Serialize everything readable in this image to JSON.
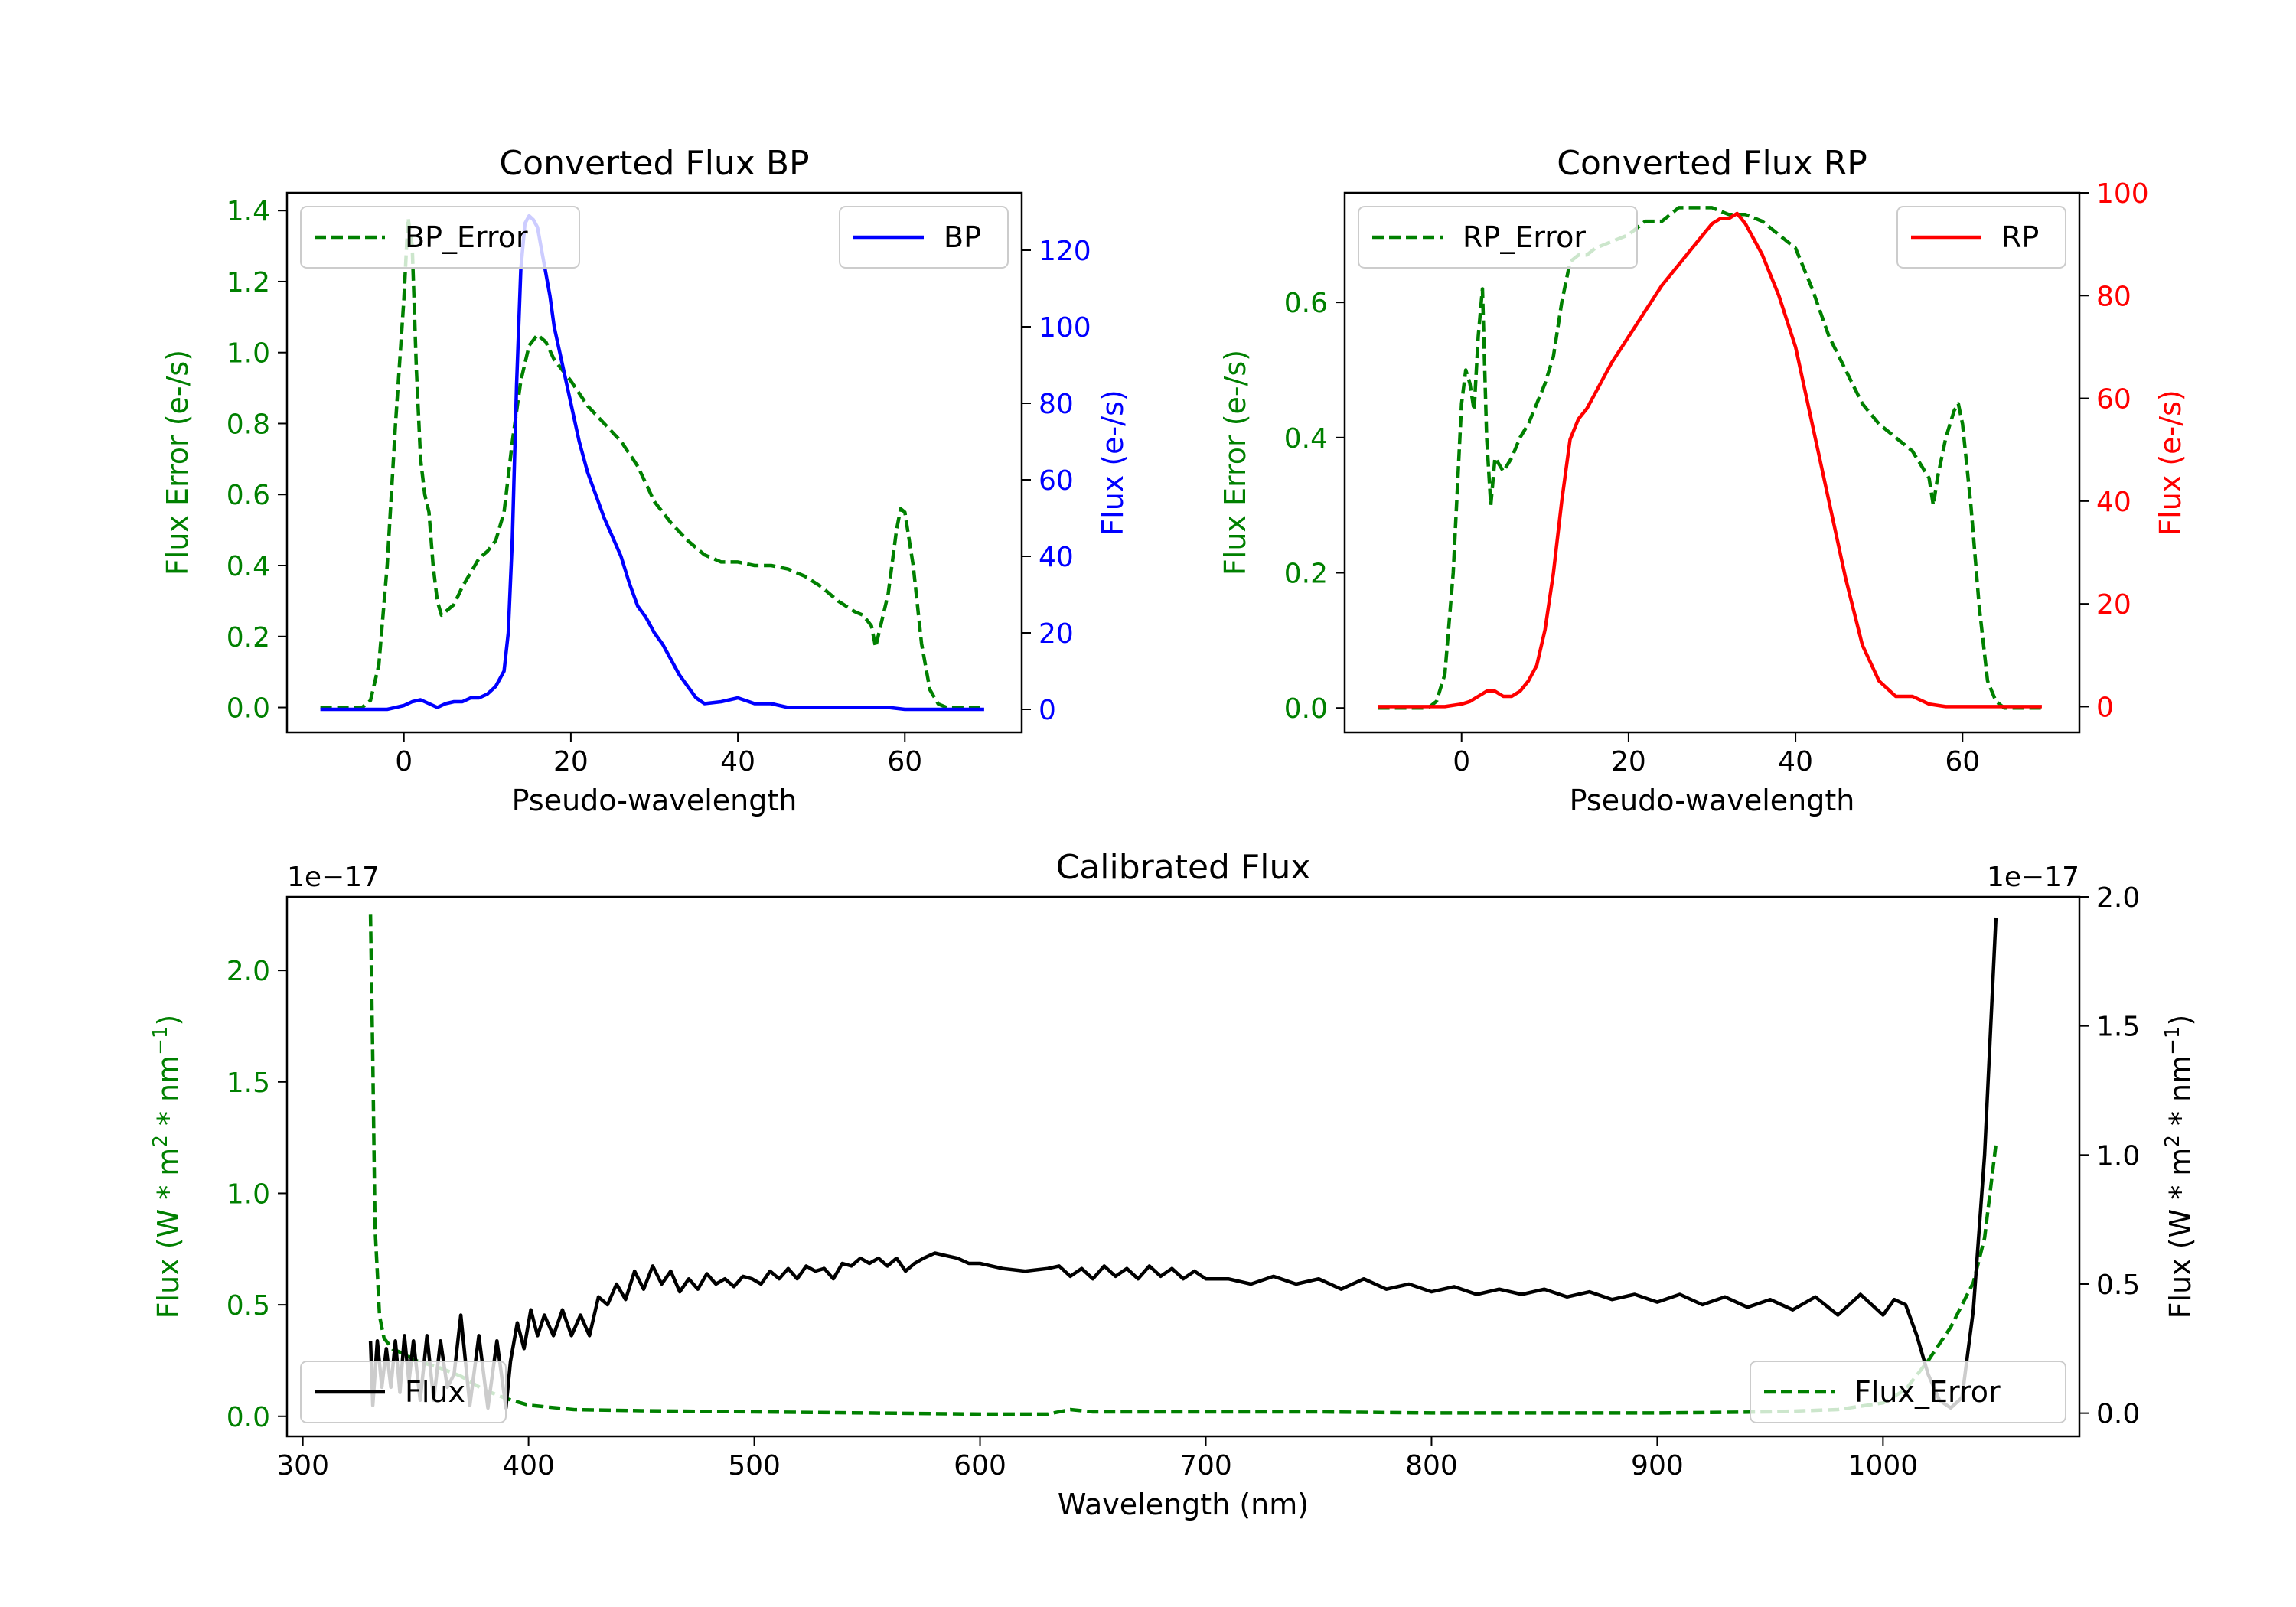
{
  "chart_data": [
    {
      "id": "bp",
      "type": "line",
      "title": "Converted Flux BP",
      "xlabel": "Pseudo-wavelength",
      "xlim": [
        -14,
        74
      ],
      "xticks": [
        0,
        20,
        40,
        60
      ],
      "ylabel_left": "Flux Error (e-/s)",
      "ylabel_right": "Flux (e-/s)",
      "ylim_left": [
        -0.07,
        1.45
      ],
      "yticks_left": [
        0.0,
        0.2,
        0.4,
        0.6,
        0.8,
        1.0,
        1.2,
        1.4
      ],
      "ylim_right": [
        -6,
        135
      ],
      "yticks_right": [
        0,
        20,
        40,
        60,
        80,
        100,
        120
      ],
      "left_color": "#008000",
      "right_color": "#0000ff",
      "series": [
        {
          "name": "BP_Error",
          "axis": "left",
          "style": "dashed",
          "color": "#008000",
          "x": [
            -10,
            -5,
            -4,
            -3,
            -2,
            -1,
            0,
            0.5,
            1,
            1.5,
            2,
            2.5,
            3,
            3.5,
            4,
            4.5,
            5,
            6,
            7,
            8,
            9,
            10,
            11,
            12,
            13,
            14,
            15,
            16,
            17,
            18,
            19,
            20,
            22,
            24,
            26,
            28,
            30,
            32,
            34,
            36,
            38,
            40,
            42,
            44,
            46,
            48,
            50,
            52,
            54,
            55,
            56,
            56.5,
            57,
            58,
            59,
            59.5,
            60,
            61,
            62,
            63,
            64,
            65,
            66,
            68,
            69.5
          ],
          "y": [
            0,
            0,
            0.02,
            0.12,
            0.4,
            0.8,
            1.15,
            1.38,
            1.3,
            0.95,
            0.7,
            0.6,
            0.55,
            0.4,
            0.3,
            0.26,
            0.27,
            0.29,
            0.34,
            0.38,
            0.42,
            0.44,
            0.47,
            0.55,
            0.75,
            0.92,
            1.02,
            1.05,
            1.03,
            0.98,
            0.95,
            0.92,
            0.85,
            0.8,
            0.75,
            0.68,
            0.58,
            0.52,
            0.47,
            0.43,
            0.41,
            0.41,
            0.4,
            0.4,
            0.39,
            0.37,
            0.34,
            0.3,
            0.27,
            0.26,
            0.23,
            0.17,
            0.22,
            0.32,
            0.5,
            0.56,
            0.55,
            0.4,
            0.18,
            0.05,
            0.01,
            0,
            0,
            0,
            0
          ]
        },
        {
          "name": "BP",
          "axis": "right",
          "style": "solid",
          "color": "#0000ff",
          "x": [
            -10,
            -4,
            -2,
            0,
            1,
            2,
            3,
            4,
            5,
            6,
            7,
            8,
            9,
            10,
            11,
            12,
            12.5,
            13,
            13.5,
            14,
            14.5,
            15,
            15.5,
            16,
            16.5,
            17,
            17.5,
            18,
            19,
            20,
            21,
            22,
            23,
            24,
            25,
            26,
            27,
            28,
            29,
            30,
            31,
            32,
            33,
            34,
            35,
            36,
            38,
            40,
            42,
            44,
            46,
            48,
            50,
            52,
            54,
            56,
            58,
            60,
            62,
            64,
            66,
            68,
            69.5
          ],
          "y": [
            0,
            0,
            0,
            1,
            2,
            2.5,
            1.5,
            0.5,
            1.5,
            2,
            2,
            3,
            3,
            4,
            6,
            10,
            20,
            45,
            85,
            115,
            127,
            129,
            128,
            126,
            120,
            114,
            108,
            100,
            90,
            80,
            70,
            62,
            56,
            50,
            45,
            40,
            33,
            27,
            24,
            20,
            17,
            13,
            9,
            6,
            3,
            1.5,
            2,
            3,
            1.5,
            1.5,
            0.5,
            0.5,
            0.5,
            0.5,
            0.5,
            0.5,
            0.5,
            0,
            0,
            0,
            0,
            0,
            0
          ]
        }
      ],
      "legends": [
        {
          "series": "BP_Error",
          "label": "BP_Error",
          "loc": "upper left"
        },
        {
          "series": "BP",
          "label": "BP",
          "loc": "upper right"
        }
      ]
    },
    {
      "id": "rp",
      "type": "line",
      "title": "Converted Flux RP",
      "xlabel": "Pseudo-wavelength",
      "xlim": [
        -14,
        74
      ],
      "xticks": [
        0,
        20,
        40,
        60
      ],
      "ylabel_left": "Flux Error (e-/s)",
      "ylabel_right": "Flux (e-/s)",
      "ylim_left": [
        -0.036,
        0.762
      ],
      "yticks_left": [
        0.0,
        0.2,
        0.4,
        0.6
      ],
      "ylim_right": [
        -5,
        100
      ],
      "yticks_right": [
        0,
        20,
        40,
        60,
        80,
        100
      ],
      "left_color": "#008000",
      "right_color": "#ff0000",
      "series": [
        {
          "name": "RP_Error",
          "axis": "left",
          "style": "dashed",
          "color": "#008000",
          "x": [
            -10,
            -4,
            -3,
            -2,
            -1,
            0,
            0.5,
            1,
            1.5,
            2,
            2.5,
            3,
            3.5,
            4,
            5,
            6,
            7,
            8,
            9,
            10,
            11,
            12,
            13,
            14,
            15,
            16,
            18,
            20,
            22,
            24,
            26,
            28,
            30,
            32,
            34,
            36,
            38,
            40,
            42,
            44,
            46,
            48,
            50,
            52,
            54,
            55,
            56,
            56.5,
            57,
            58,
            59,
            59.5,
            60,
            61,
            62,
            63,
            64,
            65,
            66,
            68,
            69.5
          ],
          "y": [
            0,
            0,
            0.01,
            0.05,
            0.2,
            0.45,
            0.5,
            0.48,
            0.44,
            0.55,
            0.62,
            0.4,
            0.3,
            0.37,
            0.35,
            0.37,
            0.4,
            0.42,
            0.45,
            0.48,
            0.52,
            0.6,
            0.66,
            0.67,
            0.67,
            0.68,
            0.69,
            0.7,
            0.72,
            0.72,
            0.74,
            0.74,
            0.74,
            0.73,
            0.73,
            0.72,
            0.7,
            0.68,
            0.62,
            0.55,
            0.5,
            0.45,
            0.42,
            0.4,
            0.38,
            0.36,
            0.34,
            0.3,
            0.34,
            0.4,
            0.44,
            0.45,
            0.42,
            0.3,
            0.15,
            0.04,
            0.01,
            0,
            0,
            0,
            0
          ]
        },
        {
          "name": "RP",
          "axis": "right",
          "style": "solid",
          "color": "#ff0000",
          "x": [
            -10,
            -2,
            0,
            1,
            2,
            3,
            4,
            5,
            6,
            7,
            8,
            9,
            10,
            11,
            12,
            13,
            14,
            15,
            16,
            17,
            18,
            20,
            22,
            24,
            26,
            28,
            30,
            31,
            32,
            33,
            34,
            36,
            38,
            40,
            42,
            44,
            46,
            48,
            50,
            52,
            54,
            56,
            58,
            60,
            62,
            64,
            66,
            68,
            69.5
          ],
          "y": [
            0,
            0,
            0.5,
            1,
            2,
            3,
            3,
            2,
            2,
            3,
            5,
            8,
            15,
            26,
            40,
            52,
            56,
            58,
            61,
            64,
            67,
            72,
            77,
            82,
            86,
            90,
            94,
            95,
            95,
            96,
            94,
            88,
            80,
            70,
            55,
            40,
            25,
            12,
            5,
            2,
            2,
            0.5,
            0,
            0,
            0,
            0,
            0,
            0,
            0
          ]
        }
      ],
      "legends": [
        {
          "series": "RP_Error",
          "label": "RP_Error",
          "loc": "upper left"
        },
        {
          "series": "RP",
          "label": "RP",
          "loc": "upper right"
        }
      ]
    },
    {
      "id": "cal",
      "type": "line",
      "title": "Calibrated Flux",
      "xlabel": "Wavelength (nm)",
      "xlim": [
        293,
        1087
      ],
      "xticks": [
        300,
        400,
        500,
        600,
        700,
        800,
        900,
        1000
      ],
      "ylabel_left": "Flux (W * m^2 * nm^-1)",
      "ylabel_right": "Flux (W * m^2 * nm^-1)",
      "offset_left": "1e−17",
      "offset_right": "1e−17",
      "ylim_left": [
        -0.09,
        2.33
      ],
      "yticks_left": [
        0.0,
        0.5,
        1.0,
        1.5,
        2.0
      ],
      "ylim_right": [
        -0.09,
        2.0
      ],
      "yticks_right": [
        0.0,
        0.5,
        1.0,
        1.5,
        2.0
      ],
      "left_color": "#008000",
      "right_color": "#000000",
      "series": [
        {
          "name": "Flux_Error",
          "axis": "left",
          "style": "dashed",
          "color": "#008000",
          "x": [
            330,
            331,
            332,
            334,
            336,
            340,
            345,
            350,
            360,
            370,
            380,
            390,
            400,
            420,
            450,
            500,
            550,
            600,
            630,
            640,
            650,
            700,
            750,
            800,
            850,
            900,
            950,
            980,
            1000,
            1010,
            1020,
            1030,
            1040,
            1045,
            1050
          ],
          "y": [
            2.25,
            1.6,
            0.85,
            0.45,
            0.35,
            0.3,
            0.28,
            0.25,
            0.22,
            0.18,
            0.12,
            0.08,
            0.05,
            0.03,
            0.025,
            0.02,
            0.015,
            0.01,
            0.01,
            0.03,
            0.02,
            0.02,
            0.02,
            0.015,
            0.015,
            0.015,
            0.02,
            0.03,
            0.06,
            0.12,
            0.25,
            0.4,
            0.6,
            0.8,
            1.22
          ]
        },
        {
          "name": "Flux",
          "axis": "right",
          "style": "solid",
          "color": "#000000",
          "x": [
            330,
            331,
            333,
            335,
            337,
            339,
            341,
            343,
            345,
            347,
            349,
            352,
            355,
            358,
            361,
            364,
            367,
            370,
            374,
            378,
            382,
            386,
            390,
            392,
            395,
            398,
            401,
            404,
            407,
            411,
            415,
            419,
            423,
            427,
            431,
            435,
            439,
            443,
            447,
            451,
            455,
            459,
            463,
            467,
            471,
            475,
            479,
            483,
            487,
            491,
            495,
            499,
            503,
            507,
            511,
            515,
            519,
            523,
            527,
            531,
            535,
            539,
            543,
            547,
            551,
            555,
            559,
            563,
            567,
            571,
            575,
            580,
            585,
            590,
            595,
            600,
            610,
            620,
            630,
            635,
            640,
            645,
            650,
            655,
            660,
            665,
            670,
            675,
            680,
            685,
            690,
            695,
            700,
            710,
            720,
            730,
            740,
            750,
            760,
            770,
            780,
            790,
            800,
            810,
            820,
            830,
            840,
            850,
            860,
            870,
            880,
            890,
            900,
            910,
            920,
            930,
            940,
            950,
            960,
            970,
            980,
            990,
            1000,
            1005,
            1010,
            1015,
            1020,
            1025,
            1030,
            1035,
            1040,
            1045,
            1050
          ],
          "y": [
            0.28,
            0.03,
            0.28,
            0.1,
            0.25,
            0.1,
            0.28,
            0.08,
            0.3,
            0.12,
            0.28,
            0.05,
            0.3,
            0.05,
            0.28,
            0.1,
            0.15,
            0.38,
            0.03,
            0.3,
            0.02,
            0.28,
            0.02,
            0.2,
            0.35,
            0.25,
            0.4,
            0.3,
            0.38,
            0.3,
            0.4,
            0.3,
            0.38,
            0.3,
            0.45,
            0.42,
            0.5,
            0.44,
            0.55,
            0.48,
            0.57,
            0.5,
            0.55,
            0.47,
            0.52,
            0.48,
            0.54,
            0.5,
            0.52,
            0.49,
            0.53,
            0.52,
            0.5,
            0.55,
            0.52,
            0.56,
            0.52,
            0.57,
            0.55,
            0.56,
            0.52,
            0.58,
            0.57,
            0.6,
            0.58,
            0.6,
            0.57,
            0.6,
            0.55,
            0.58,
            0.6,
            0.62,
            0.61,
            0.6,
            0.58,
            0.58,
            0.56,
            0.55,
            0.56,
            0.57,
            0.53,
            0.56,
            0.52,
            0.57,
            0.53,
            0.56,
            0.52,
            0.57,
            0.53,
            0.56,
            0.52,
            0.55,
            0.52,
            0.52,
            0.5,
            0.53,
            0.5,
            0.52,
            0.48,
            0.52,
            0.48,
            0.5,
            0.47,
            0.49,
            0.46,
            0.48,
            0.46,
            0.48,
            0.45,
            0.47,
            0.44,
            0.46,
            0.43,
            0.46,
            0.42,
            0.45,
            0.41,
            0.44,
            0.4,
            0.45,
            0.38,
            0.46,
            0.38,
            0.44,
            0.42,
            0.3,
            0.15,
            0.05,
            0.02,
            0.06,
            0.4,
            1.0,
            1.92
          ]
        }
      ],
      "legends": [
        {
          "series": "Flux",
          "label": "Flux",
          "loc": "lower left"
        },
        {
          "series": "Flux_Error",
          "label": "Flux_Error",
          "loc": "lower right"
        }
      ]
    }
  ]
}
